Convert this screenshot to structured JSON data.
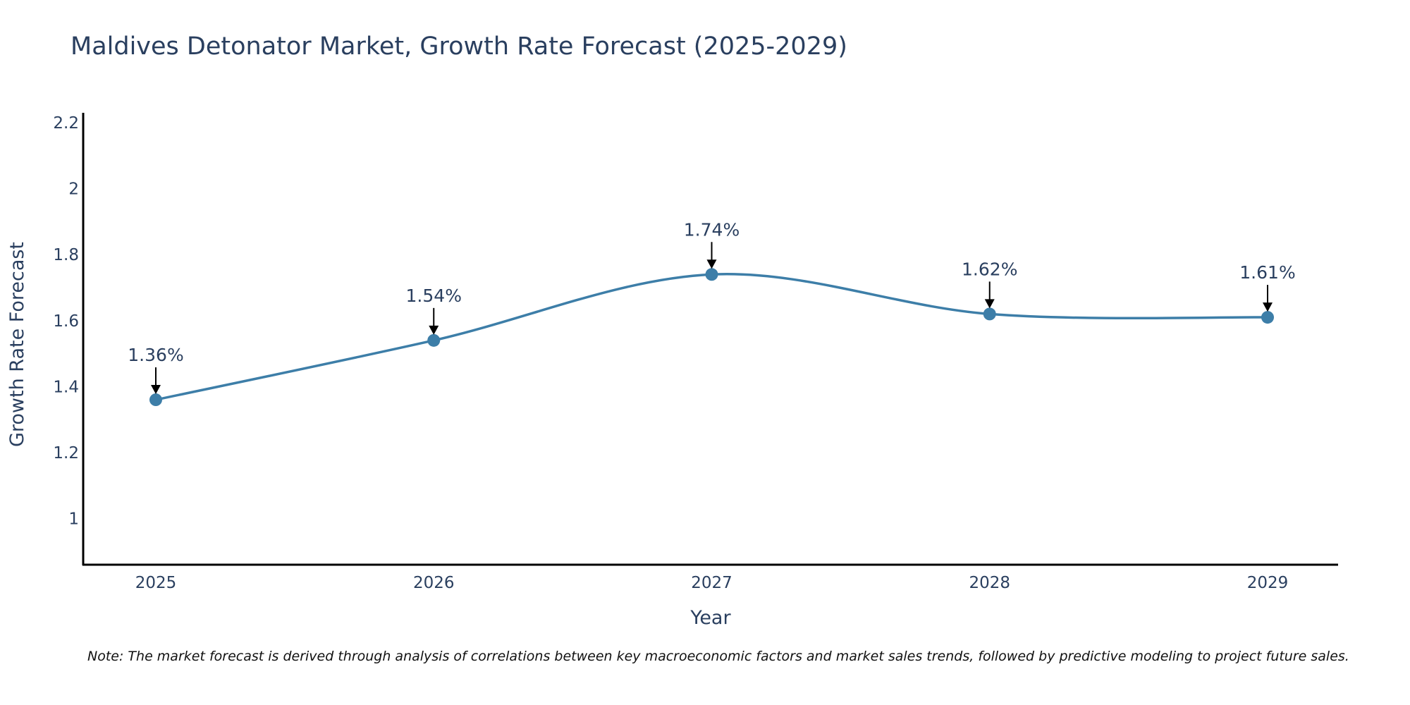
{
  "chart_data": {
    "type": "line",
    "title": "Maldives Detonator Market, Growth Rate Forecast (2025-2029)",
    "xlabel": "Year",
    "ylabel": "Growth Rate Forecast",
    "categories": [
      "2025",
      "2026",
      "2027",
      "2028",
      "2029"
    ],
    "values": [
      1.36,
      1.54,
      1.74,
      1.62,
      1.61
    ],
    "data_labels": [
      "1.36%",
      "1.54%",
      "1.74%",
      "1.62%",
      "1.61%"
    ],
    "ylim": [
      0.86,
      2.23
    ],
    "yticks": [
      1,
      1.2,
      1.4,
      1.6,
      1.8,
      2,
      2.2
    ],
    "ytick_labels": [
      "1",
      "1.2",
      "1.4",
      "1.6",
      "1.8",
      "2",
      "2.2"
    ],
    "grid": false,
    "line_shape": "spline",
    "series_color": "#3d7ea8",
    "note": "Note: The market forecast is derived through analysis of correlations between key macroeconomic factors and market sales trends, followed by predictive modeling to project future sales."
  }
}
